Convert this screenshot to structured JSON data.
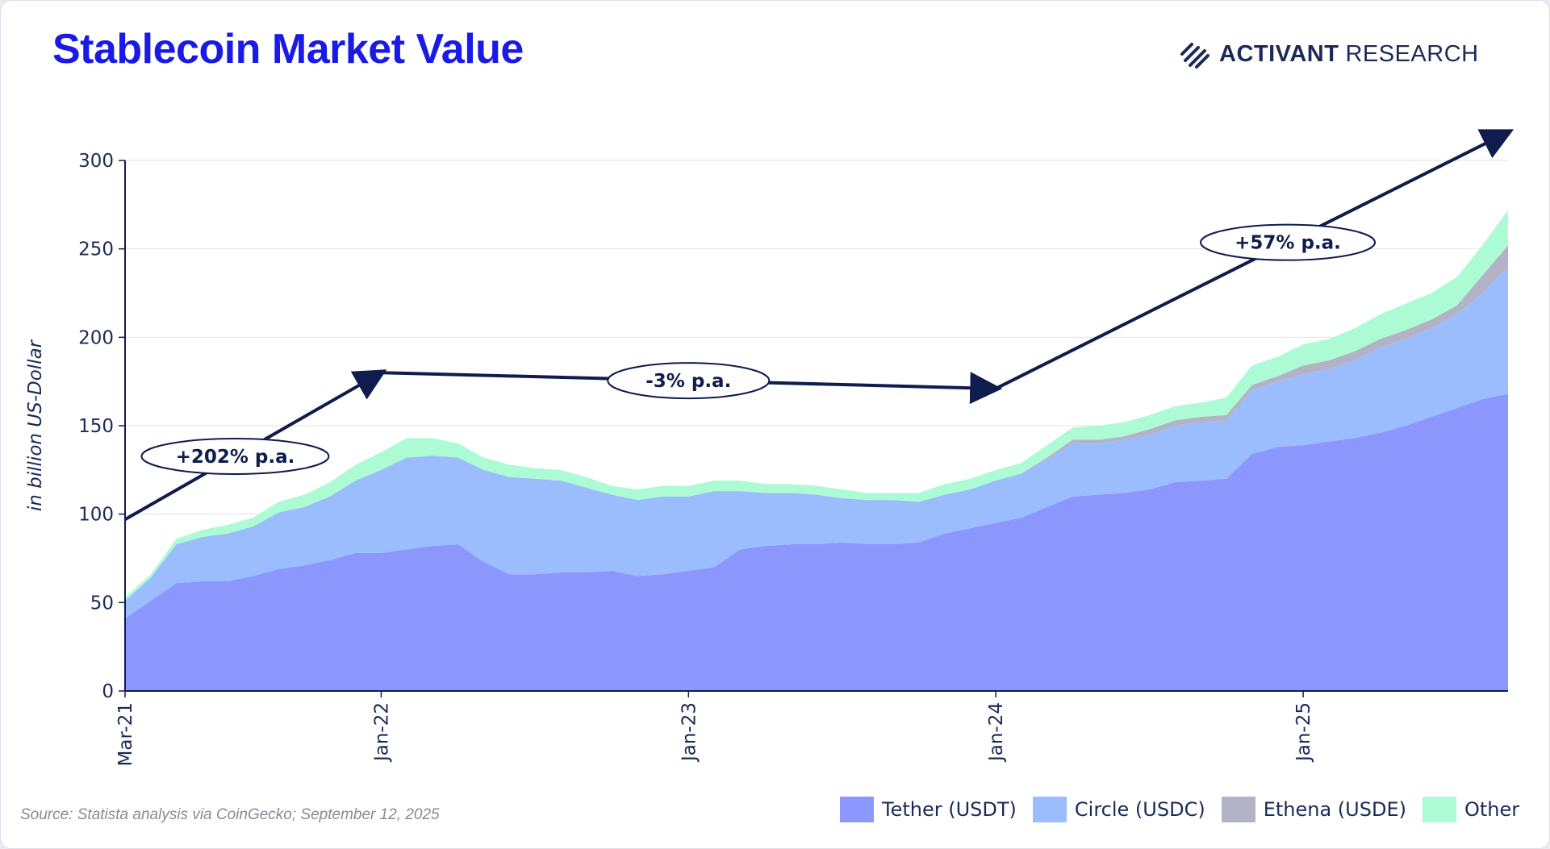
{
  "header": {
    "title": "Stablecoin Market Value",
    "brand_bold": "ACTIVANT",
    "brand_light": "RESEARCH"
  },
  "source": "Source: Statista analysis via CoinGecko; September 12, 2025",
  "colors": {
    "title": "#1a1ae6",
    "tether": "#8c97fe",
    "circle": "#9bbcfd",
    "ethena": "#b3b3c7",
    "other": "#adfbd4",
    "navy": "#0f1c4d"
  },
  "chart_data": {
    "type": "area",
    "stacked": true,
    "ylabel": "in billion US-Dollar",
    "xlabel": "",
    "ylim": [
      0,
      300
    ],
    "y_ticks": [
      0,
      50,
      100,
      150,
      200,
      250,
      300
    ],
    "x_tick_labels": [
      "Mar-21",
      "Jan-22",
      "Jan-23",
      "Jan-24",
      "Jan-25"
    ],
    "x_ticks_month_index": [
      0,
      10,
      22,
      34,
      46
    ],
    "grid": "horizontal",
    "legend_position": "bottom-right",
    "x": [
      "Mar-21",
      "Apr-21",
      "May-21",
      "Jun-21",
      "Jul-21",
      "Aug-21",
      "Sep-21",
      "Oct-21",
      "Nov-21",
      "Dec-21",
      "Jan-22",
      "Feb-22",
      "Mar-22",
      "Apr-22",
      "May-22",
      "Jun-22",
      "Jul-22",
      "Aug-22",
      "Sep-22",
      "Oct-22",
      "Nov-22",
      "Dec-22",
      "Jan-23",
      "Feb-23",
      "Mar-23",
      "Apr-23",
      "May-23",
      "Jun-23",
      "Jul-23",
      "Aug-23",
      "Sep-23",
      "Oct-23",
      "Nov-23",
      "Dec-23",
      "Jan-24",
      "Feb-24",
      "Mar-24",
      "Apr-24",
      "May-24",
      "Jun-24",
      "Jul-24",
      "Aug-24",
      "Sep-24",
      "Oct-24",
      "Nov-24",
      "Dec-24",
      "Jan-25",
      "Feb-25",
      "Mar-25",
      "Apr-25",
      "May-25",
      "Jun-25",
      "Jul-25",
      "Aug-25",
      "Sep-25"
    ],
    "series": [
      {
        "name": "Tether (USDT)",
        "values": [
          41,
          51,
          61,
          62,
          62,
          65,
          69,
          71,
          74,
          78,
          78,
          80,
          82,
          83,
          73,
          66,
          66,
          67,
          67,
          68,
          65,
          66,
          68,
          70,
          80,
          82,
          83,
          83,
          84,
          83,
          83,
          84,
          89,
          92,
          95,
          98,
          104,
          110,
          111,
          112,
          114,
          118,
          119,
          120,
          134,
          138,
          139,
          141,
          143,
          146,
          150,
          155,
          160,
          165,
          168
        ]
      },
      {
        "name": "Circle (USDC)",
        "values": [
          10,
          13,
          22,
          25,
          27,
          28,
          32,
          33,
          36,
          41,
          47,
          52,
          51,
          49,
          52,
          55,
          54,
          52,
          48,
          43,
          43,
          44,
          42,
          43,
          33,
          30,
          29,
          28,
          25,
          25,
          25,
          23,
          22,
          22,
          24,
          25,
          27,
          30,
          29,
          30,
          31,
          32,
          33,
          33,
          36,
          37,
          40,
          41,
          44,
          48,
          49,
          50,
          53,
          60,
          72
        ]
      },
      {
        "name": "Ethena (USDE)",
        "values": [
          0,
          0,
          0,
          0,
          0,
          0,
          0,
          0,
          0,
          0,
          0,
          0,
          0,
          0,
          0,
          0,
          0,
          0,
          0,
          0,
          0,
          0,
          0,
          0,
          0,
          0,
          0,
          0,
          0,
          0,
          0,
          0,
          0,
          0,
          0,
          0,
          1,
          2,
          2,
          2,
          3,
          3,
          3,
          3,
          3,
          3,
          5,
          5,
          5,
          5,
          5,
          5,
          5,
          10,
          12
        ]
      },
      {
        "name": "Other",
        "values": [
          2,
          2,
          3,
          4,
          5,
          5,
          6,
          7,
          8,
          9,
          10,
          11,
          10,
          8,
          7,
          7,
          6,
          6,
          6,
          5,
          6,
          6,
          6,
          6,
          6,
          5,
          5,
          5,
          5,
          4,
          4,
          5,
          6,
          6,
          6,
          6,
          7,
          7,
          8,
          8,
          8,
          8,
          8,
          10,
          11,
          11,
          12,
          12,
          13,
          14,
          15,
          15,
          16,
          17,
          20
        ]
      }
    ],
    "annotations": [
      {
        "label": "+202% p.a.",
        "from": {
          "x": "Mar-21",
          "y": 97
        },
        "to": {
          "x": "Jan-22",
          "y": 180
        }
      },
      {
        "label": "-3% p.a.",
        "from": {
          "x": "Jan-22",
          "y": 180
        },
        "to": {
          "x": "Jan-24",
          "y": 171
        }
      },
      {
        "label": "+57% p.a.",
        "from": {
          "x": "Jan-24",
          "y": 171
        },
        "to": {
          "x": "Sep-25",
          "y": 316
        }
      }
    ]
  }
}
